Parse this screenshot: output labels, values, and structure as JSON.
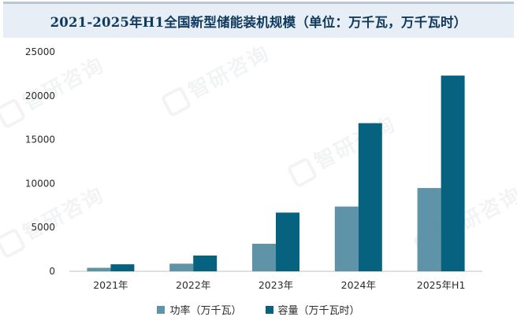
{
  "watermark": "智研咨询",
  "colors": {
    "power": "#5f93a8",
    "capacity": "#07627f",
    "axis": "#bfbfbf"
  },
  "chart_data": {
    "type": "bar",
    "title": "2021-2025年H1全国新型储能装机规模（单位：万千瓦，万千瓦时）",
    "categories": [
      "2021年",
      "2022年",
      "2023年",
      "2024年",
      "2025年H1"
    ],
    "series": [
      {
        "name": "功率（万千瓦）",
        "values": [
          400,
          870,
          3140,
          7380,
          9490
        ]
      },
      {
        "name": "容量（万千瓦时）",
        "values": [
          800,
          1800,
          6690,
          16880,
          22300
        ]
      }
    ],
    "ylim": [
      0,
      25000
    ],
    "yticks": [
      0,
      5000,
      10000,
      15000,
      20000,
      25000
    ],
    "ytick_labels": [
      "0",
      "5000",
      "10000",
      "15000",
      "20000",
      "25000"
    ],
    "xlabel": "",
    "ylabel": "",
    "grid": false,
    "legend_position": "bottom"
  }
}
